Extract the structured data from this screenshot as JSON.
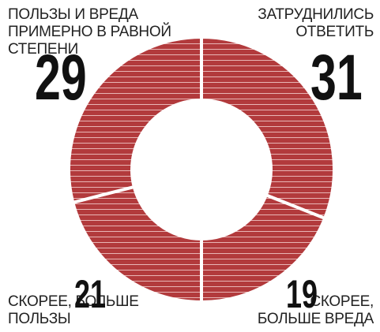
{
  "chart_data": {
    "type": "donut",
    "categories": [
      "ЗАТРУДНИЛИСЬ ОТВЕТИТЬ",
      "СКОРЕЕ, БОЛЬШЕ ВРЕДА",
      "СКОРЕЕ, БОЛЬШЕ ПОЛЬЗЫ",
      "ПОЛЬЗЫ И ВРЕДА ПРИМЕРНО В РАВНОЙ СТЕПЕНИ"
    ],
    "values": [
      31,
      19,
      21,
      29
    ],
    "color": "#b23a3c"
  }
}
